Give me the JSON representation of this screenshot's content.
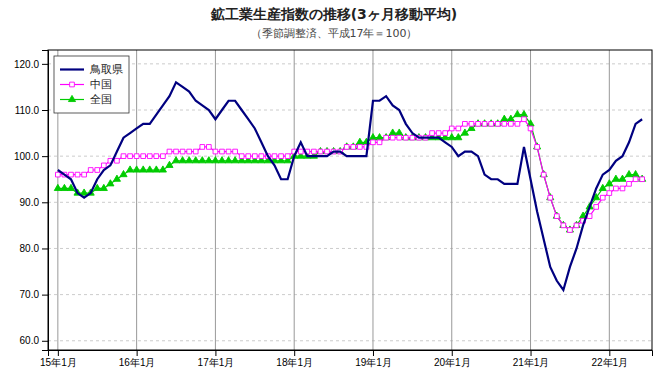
{
  "chart_data": {
    "type": "line",
    "title": "鉱工業生産指数の推移(3ヶ月移動平均)",
    "subtitle": "（季節調整済、平成17年＝100）",
    "categories": [
      "15年1月",
      null,
      null,
      null,
      null,
      null,
      null,
      null,
      null,
      null,
      null,
      null,
      "16年1月",
      null,
      null,
      null,
      null,
      null,
      null,
      null,
      null,
      null,
      null,
      null,
      "17年1月",
      null,
      null,
      null,
      null,
      null,
      null,
      null,
      null,
      null,
      null,
      null,
      "18年1月",
      null,
      null,
      null,
      null,
      null,
      null,
      null,
      null,
      null,
      null,
      null,
      "19年1月",
      null,
      null,
      null,
      null,
      null,
      null,
      null,
      null,
      null,
      null,
      null,
      "20年1月",
      null,
      null,
      null,
      null,
      null,
      null,
      null,
      null,
      null,
      null,
      null,
      "21年1月",
      null,
      null,
      null,
      null,
      null,
      null,
      null,
      null,
      null,
      null,
      null,
      "22年1月",
      null,
      null,
      null,
      null,
      null
    ],
    "series": [
      {
        "name": "鳥取県",
        "color": "#000080",
        "marker": "none",
        "values": [
          97,
          96,
          95,
          92,
          91,
          92,
          95,
          97,
          98,
          101,
          104,
          105,
          106,
          107,
          107,
          109,
          111,
          113,
          116,
          115,
          114,
          112,
          111,
          110,
          108,
          110,
          112,
          112,
          110,
          108,
          106,
          103,
          100,
          98,
          95,
          95,
          100,
          103,
          100,
          100,
          100,
          100,
          101,
          101,
          100,
          100,
          100,
          100,
          112,
          112,
          113,
          111,
          110,
          107,
          105,
          104,
          104,
          104,
          104,
          103,
          102,
          100,
          101,
          101,
          100,
          96,
          95,
          95,
          94,
          94,
          94,
          102,
          95,
          88,
          82,
          76,
          73,
          71,
          76,
          80,
          85,
          89,
          93,
          96,
          97,
          99,
          100,
          103,
          107,
          108
        ]
      },
      {
        "name": "中国",
        "color": "#FF00FF",
        "marker": "square",
        "values": [
          96,
          96,
          96,
          96,
          96,
          97,
          97,
          98,
          99,
          99,
          100,
          100,
          100,
          100,
          100,
          100,
          100,
          101,
          101,
          101,
          101,
          101,
          102,
          102,
          101,
          101,
          101,
          101,
          100,
          100,
          100,
          100,
          100,
          100,
          100,
          100,
          101,
          101,
          101,
          101,
          101,
          101,
          101,
          101,
          102,
          102,
          102,
          102,
          103,
          103,
          104,
          104,
          104,
          104,
          104,
          104,
          104,
          105,
          105,
          105,
          106,
          106,
          107,
          107,
          107,
          107,
          107,
          107,
          107,
          107,
          107,
          108,
          106,
          102,
          96,
          91,
          87,
          85,
          84,
          85,
          86,
          87,
          89,
          91,
          92,
          93,
          93,
          94,
          95,
          95
        ]
      },
      {
        "name": "全国",
        "color": "#00CC00",
        "marker": "triangle",
        "values": [
          93,
          93,
          93,
          92,
          92,
          92,
          93,
          93,
          94,
          95,
          96,
          97,
          97,
          97,
          97,
          97,
          97,
          98,
          99,
          99,
          99,
          99,
          99,
          99,
          99,
          99,
          99,
          99,
          99,
          99,
          99,
          99,
          99,
          99,
          99,
          99,
          100,
          100,
          100,
          100,
          101,
          101,
          101,
          101,
          102,
          102,
          103,
          103,
          104,
          104,
          104,
          105,
          105,
          104,
          104,
          104,
          104,
          104,
          104,
          104,
          104,
          104,
          105,
          106,
          107,
          107,
          107,
          107,
          108,
          108,
          109,
          109,
          107,
          102,
          96,
          91,
          87,
          85,
          84,
          85,
          87,
          89,
          91,
          93,
          94,
          95,
          95,
          96,
          96,
          95
        ]
      }
    ],
    "ylim": [
      58,
      123
    ],
    "yticks": [
      {
        "value": 60,
        "label": "60.0"
      },
      {
        "value": 70,
        "label": "70.0"
      },
      {
        "value": 80,
        "label": "80.0"
      },
      {
        "value": 90,
        "label": "90.0"
      },
      {
        "value": 100,
        "label": "100.0"
      },
      {
        "value": 110,
        "label": "110.0"
      },
      {
        "value": 120,
        "label": "120.0"
      }
    ],
    "grid": true,
    "legend": "upper left"
  }
}
